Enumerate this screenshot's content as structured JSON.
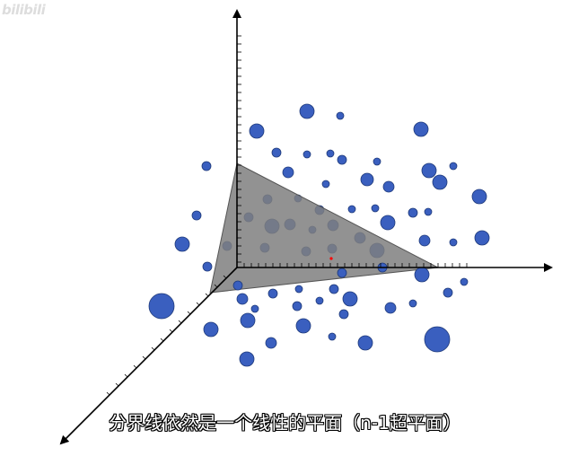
{
  "watermark": "bilibili",
  "subtitle": "分界线依然是一个线性的平面（n-1超平面）",
  "colors": {
    "point": "#3a5fbf",
    "point_stroke": "#1f3a7a",
    "plane": "#808080",
    "axis": "#000000",
    "origin_marker": "#ff0000"
  },
  "icons": [
    "3d-axes-icon",
    "hyperplane-icon",
    "data-point-icon"
  ]
}
